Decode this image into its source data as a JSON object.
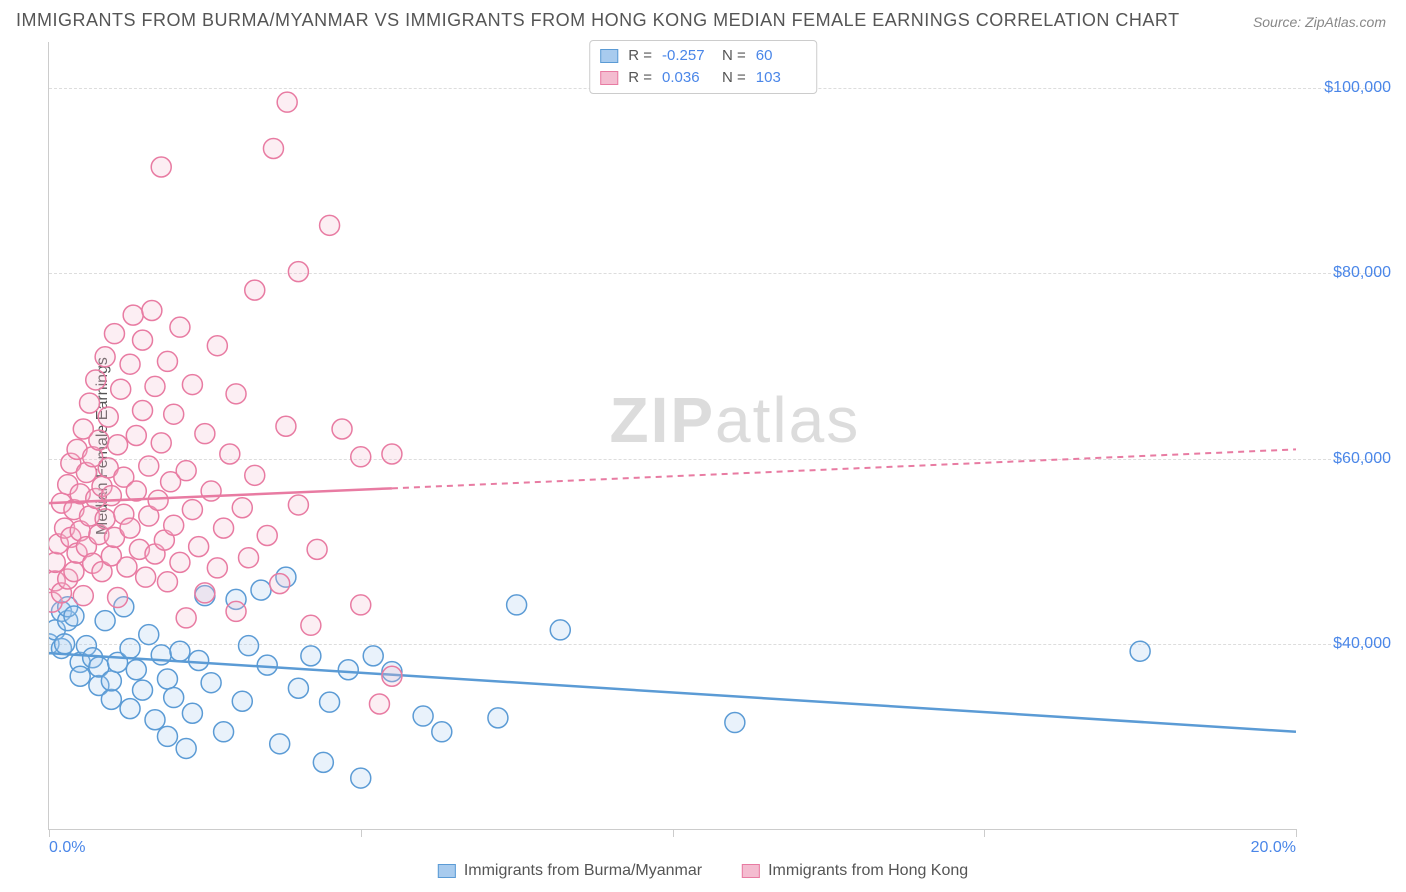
{
  "title": "IMMIGRANTS FROM BURMA/MYANMAR VS IMMIGRANTS FROM HONG KONG MEDIAN FEMALE EARNINGS CORRELATION CHART",
  "source": "Source: ZipAtlas.com",
  "ylabel": "Median Female Earnings",
  "watermark_a": "ZIP",
  "watermark_b": "atlas",
  "chart": {
    "type": "scatter",
    "xlim": [
      0,
      20
    ],
    "ylim": [
      20000,
      105000
    ],
    "xticks": [
      0,
      20
    ],
    "xtick_labels": [
      "0.0%",
      "20.0%"
    ],
    "vtick_positions": [
      0,
      5,
      10,
      15,
      20
    ],
    "yticks": [
      40000,
      60000,
      80000,
      100000
    ],
    "ytick_labels": [
      "$40,000",
      "$60,000",
      "$80,000",
      "$100,000"
    ],
    "grid_color": "#dddddd",
    "background_color": "#ffffff",
    "marker_radius": 10,
    "series": [
      {
        "name": "Immigrants from Burma/Myanmar",
        "color": "#5b9bd5",
        "fill": "#a8cbee",
        "R": "-0.257",
        "N": "60",
        "trend": {
          "x1": 0,
          "y1": 39000,
          "x2": 20,
          "y2": 30500,
          "dash_from_x": 20
        },
        "points": [
          [
            0.0,
            40000
          ],
          [
            0.1,
            41500
          ],
          [
            0.2,
            43500
          ],
          [
            0.2,
            39500
          ],
          [
            0.25,
            40000
          ],
          [
            0.3,
            42500
          ],
          [
            0.3,
            44000
          ],
          [
            0.4,
            43000
          ],
          [
            0.5,
            38000
          ],
          [
            0.5,
            36500
          ],
          [
            0.6,
            39800
          ],
          [
            0.7,
            38500
          ],
          [
            0.8,
            35500
          ],
          [
            0.8,
            37500
          ],
          [
            0.9,
            42500
          ],
          [
            1.0,
            34000
          ],
          [
            1.0,
            36000
          ],
          [
            1.1,
            38000
          ],
          [
            1.2,
            44000
          ],
          [
            1.3,
            33000
          ],
          [
            1.3,
            39500
          ],
          [
            1.4,
            37200
          ],
          [
            1.5,
            35000
          ],
          [
            1.6,
            41000
          ],
          [
            1.7,
            31800
          ],
          [
            1.8,
            38800
          ],
          [
            1.9,
            30000
          ],
          [
            1.9,
            36200
          ],
          [
            2.0,
            34200
          ],
          [
            2.1,
            39200
          ],
          [
            2.2,
            28700
          ],
          [
            2.3,
            32500
          ],
          [
            2.4,
            38200
          ],
          [
            2.5,
            45200
          ],
          [
            2.6,
            35800
          ],
          [
            2.8,
            30500
          ],
          [
            3.0,
            44800
          ],
          [
            3.1,
            33800
          ],
          [
            3.2,
            39800
          ],
          [
            3.4,
            45800
          ],
          [
            3.5,
            37700
          ],
          [
            3.7,
            29200
          ],
          [
            3.8,
            47200
          ],
          [
            4.0,
            35200
          ],
          [
            4.2,
            38700
          ],
          [
            4.4,
            27200
          ],
          [
            4.5,
            33700
          ],
          [
            4.8,
            37200
          ],
          [
            5.0,
            25500
          ],
          [
            5.2,
            38700
          ],
          [
            5.5,
            37000
          ],
          [
            6.0,
            32200
          ],
          [
            6.3,
            30500
          ],
          [
            7.2,
            32000
          ],
          [
            7.5,
            44200
          ],
          [
            8.2,
            41500
          ],
          [
            11.0,
            31500
          ],
          [
            17.5,
            39200
          ]
        ]
      },
      {
        "name": "Immigrants from Hong Kong",
        "color": "#e87ba2",
        "fill": "#f4bcd0",
        "R": "0.036",
        "N": "103",
        "trend": {
          "x1": 0,
          "y1": 55200,
          "x2": 20,
          "y2": 61000,
          "dash_from_x": 5.5
        },
        "points": [
          [
            0.05,
            44500
          ],
          [
            0.1,
            46800
          ],
          [
            0.1,
            48800
          ],
          [
            0.15,
            50800
          ],
          [
            0.2,
            55200
          ],
          [
            0.2,
            45500
          ],
          [
            0.25,
            52500
          ],
          [
            0.3,
            47000
          ],
          [
            0.3,
            57200
          ],
          [
            0.35,
            51500
          ],
          [
            0.35,
            59500
          ],
          [
            0.4,
            54500
          ],
          [
            0.4,
            47800
          ],
          [
            0.45,
            61000
          ],
          [
            0.45,
            49800
          ],
          [
            0.5,
            56200
          ],
          [
            0.5,
            52200
          ],
          [
            0.55,
            63200
          ],
          [
            0.55,
            45200
          ],
          [
            0.6,
            58500
          ],
          [
            0.6,
            50500
          ],
          [
            0.65,
            53800
          ],
          [
            0.65,
            66000
          ],
          [
            0.7,
            48700
          ],
          [
            0.7,
            60200
          ],
          [
            0.75,
            55700
          ],
          [
            0.75,
            68500
          ],
          [
            0.8,
            51800
          ],
          [
            0.8,
            62000
          ],
          [
            0.85,
            57000
          ],
          [
            0.85,
            47800
          ],
          [
            0.9,
            71000
          ],
          [
            0.9,
            53500
          ],
          [
            0.95,
            59000
          ],
          [
            0.95,
            64500
          ],
          [
            1.0,
            49500
          ],
          [
            1.0,
            56000
          ],
          [
            1.05,
            73500
          ],
          [
            1.05,
            51500
          ],
          [
            1.1,
            61500
          ],
          [
            1.1,
            45000
          ],
          [
            1.15,
            67500
          ],
          [
            1.2,
            54000
          ],
          [
            1.2,
            58000
          ],
          [
            1.25,
            48300
          ],
          [
            1.3,
            70200
          ],
          [
            1.3,
            52500
          ],
          [
            1.35,
            75500
          ],
          [
            1.4,
            56500
          ],
          [
            1.4,
            62500
          ],
          [
            1.45,
            50200
          ],
          [
            1.5,
            65200
          ],
          [
            1.5,
            72800
          ],
          [
            1.55,
            47200
          ],
          [
            1.6,
            59200
          ],
          [
            1.6,
            53800
          ],
          [
            1.65,
            76000
          ],
          [
            1.7,
            49700
          ],
          [
            1.7,
            67800
          ],
          [
            1.75,
            55500
          ],
          [
            1.8,
            91500
          ],
          [
            1.8,
            61700
          ],
          [
            1.85,
            51200
          ],
          [
            1.9,
            70500
          ],
          [
            1.9,
            46700
          ],
          [
            1.95,
            57500
          ],
          [
            2.0,
            64800
          ],
          [
            2.0,
            52800
          ],
          [
            2.1,
            48800
          ],
          [
            2.1,
            74200
          ],
          [
            2.2,
            58700
          ],
          [
            2.2,
            42800
          ],
          [
            2.3,
            68000
          ],
          [
            2.3,
            54500
          ],
          [
            2.4,
            50500
          ],
          [
            2.5,
            62700
          ],
          [
            2.5,
            45500
          ],
          [
            2.6,
            56500
          ],
          [
            2.7,
            72200
          ],
          [
            2.7,
            48200
          ],
          [
            2.8,
            52500
          ],
          [
            2.9,
            60500
          ],
          [
            3.0,
            43500
          ],
          [
            3.0,
            67000
          ],
          [
            3.1,
            54700
          ],
          [
            3.2,
            49300
          ],
          [
            3.3,
            78200
          ],
          [
            3.3,
            58200
          ],
          [
            3.5,
            51700
          ],
          [
            3.6,
            93500
          ],
          [
            3.7,
            46500
          ],
          [
            3.8,
            63500
          ],
          [
            3.82,
            98500
          ],
          [
            4.0,
            55000
          ],
          [
            4.0,
            80200
          ],
          [
            4.2,
            42000
          ],
          [
            4.3,
            50200
          ],
          [
            4.5,
            85200
          ],
          [
            4.7,
            63200
          ],
          [
            5.0,
            60200
          ],
          [
            5.0,
            44200
          ],
          [
            5.3,
            33500
          ],
          [
            5.5,
            36500
          ],
          [
            5.5,
            60500
          ]
        ]
      }
    ]
  },
  "legend_bottom": [
    {
      "swatch": 0,
      "label": "Immigrants from Burma/Myanmar"
    },
    {
      "swatch": 1,
      "label": "Immigrants from Hong Kong"
    }
  ]
}
